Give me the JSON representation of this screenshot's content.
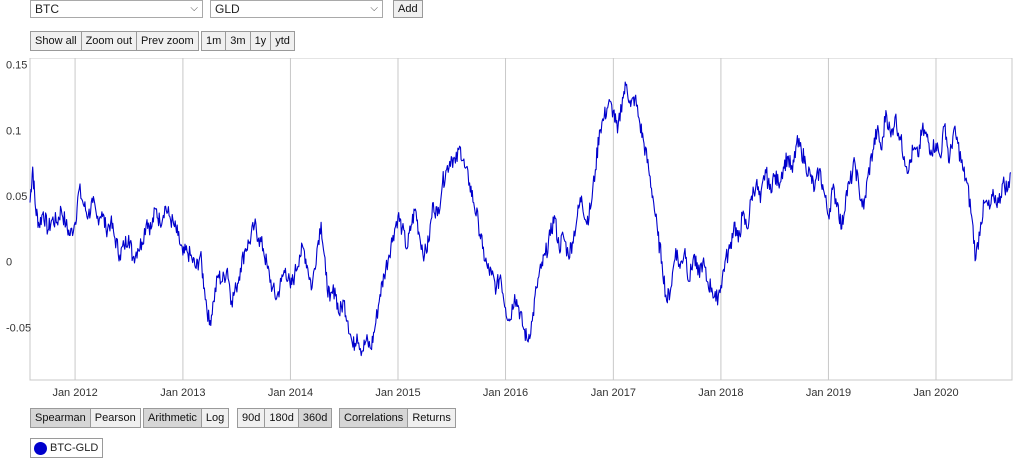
{
  "selectors": {
    "asset1": "BTC",
    "asset2": "GLD",
    "add_label": "Add"
  },
  "zoom_buttons": [
    "Show all",
    "Zoom out",
    "Prev zoom"
  ],
  "range_buttons": [
    "1m",
    "3m",
    "1y",
    "ytd"
  ],
  "method_buttons": [
    {
      "label": "Spearman",
      "active": true
    },
    {
      "label": "Pearson",
      "active": false
    }
  ],
  "scale_buttons": [
    {
      "label": "Arithmetic",
      "active": true
    },
    {
      "label": "Log",
      "active": false
    }
  ],
  "window_buttons": [
    {
      "label": "90d",
      "active": false
    },
    {
      "label": "180d",
      "active": false
    },
    {
      "label": "360d",
      "active": true
    }
  ],
  "mode_buttons": [
    {
      "label": "Correlations",
      "active": true
    },
    {
      "label": "Returns",
      "active": false
    }
  ],
  "legend": {
    "label": "BTC-GLD",
    "color": "#0000cc"
  },
  "chart_data": {
    "type": "line",
    "title": "",
    "xlabel": "",
    "ylabel": "",
    "ylim": [
      -0.09,
      0.155
    ],
    "xlim": [
      "2011-08-01",
      "2020-09-15"
    ],
    "y_ticks": [
      {
        "value": 0.15,
        "label": "0.15"
      },
      {
        "value": 0.1,
        "label": "0.1"
      },
      {
        "value": 0.05,
        "label": "0.05"
      },
      {
        "value": 0,
        "label": "0"
      },
      {
        "value": -0.05,
        "label": "-0.05"
      }
    ],
    "x_ticks": [
      {
        "date": "2012-01-01",
        "label": "Jan 2012"
      },
      {
        "date": "2013-01-01",
        "label": "Jan 2013"
      },
      {
        "date": "2014-01-01",
        "label": "Jan 2014"
      },
      {
        "date": "2015-01-01",
        "label": "Jan 2015"
      },
      {
        "date": "2016-01-01",
        "label": "Jan 2016"
      },
      {
        "date": "2017-01-01",
        "label": "Jan 2017"
      },
      {
        "date": "2018-01-01",
        "label": "Jan 2018"
      },
      {
        "date": "2019-01-01",
        "label": "Jan 2019"
      },
      {
        "date": "2020-01-01",
        "label": "Jan 2020"
      }
    ],
    "grid": {
      "vertical": true,
      "horizontal": false
    },
    "series": [
      {
        "color": "#0000cc",
        "points": [
          [
            "2011-08-01",
            0.045
          ],
          [
            "2011-08-10",
            0.072
          ],
          [
            "2011-08-20",
            0.04
          ],
          [
            "2011-09-01",
            0.028
          ],
          [
            "2011-09-15",
            0.038
          ],
          [
            "2011-10-01",
            0.024
          ],
          [
            "2011-10-15",
            0.032
          ],
          [
            "2011-11-01",
            0.03
          ],
          [
            "2011-11-15",
            0.04
          ],
          [
            "2011-12-01",
            0.028
          ],
          [
            "2011-12-15",
            0.02
          ],
          [
            "2012-01-01",
            0.03
          ],
          [
            "2012-01-15",
            0.055
          ],
          [
            "2012-02-01",
            0.042
          ],
          [
            "2012-02-15",
            0.035
          ],
          [
            "2012-03-01",
            0.045
          ],
          [
            "2012-03-15",
            0.033
          ],
          [
            "2012-04-01",
            0.038
          ],
          [
            "2012-04-15",
            0.025
          ],
          [
            "2012-05-01",
            0.03
          ],
          [
            "2012-05-15",
            0.018
          ],
          [
            "2012-06-01",
            0.005
          ],
          [
            "2012-06-15",
            0.012
          ],
          [
            "2012-07-01",
            0.02
          ],
          [
            "2012-07-15",
            0.003
          ],
          [
            "2012-08-01",
            0.01
          ],
          [
            "2012-08-15",
            0.015
          ],
          [
            "2012-09-01",
            0.032
          ],
          [
            "2012-09-15",
            0.025
          ],
          [
            "2012-10-01",
            0.04
          ],
          [
            "2012-10-15",
            0.03
          ],
          [
            "2012-11-01",
            0.042
          ],
          [
            "2012-11-15",
            0.035
          ],
          [
            "2012-12-01",
            0.028
          ],
          [
            "2012-12-15",
            0.02
          ],
          [
            "2013-01-01",
            0.005
          ],
          [
            "2013-01-15",
            0.008
          ],
          [
            "2013-02-01",
            0.002
          ],
          [
            "2013-02-15",
            -0.005
          ],
          [
            "2013-03-01",
            0.005
          ],
          [
            "2013-03-15",
            -0.02
          ],
          [
            "2013-04-01",
            -0.048
          ],
          [
            "2013-04-15",
            -0.03
          ],
          [
            "2013-05-01",
            -0.01
          ],
          [
            "2013-05-15",
            -0.015
          ],
          [
            "2013-06-01",
            -0.005
          ],
          [
            "2013-06-15",
            -0.03
          ],
          [
            "2013-07-01",
            -0.02
          ],
          [
            "2013-07-15",
            -0.005
          ],
          [
            "2013-08-01",
            0.01
          ],
          [
            "2013-08-15",
            0.015
          ],
          [
            "2013-09-01",
            0.028
          ],
          [
            "2013-09-15",
            0.018
          ],
          [
            "2013-10-01",
            0.01
          ],
          [
            "2013-10-15",
            -0.005
          ],
          [
            "2013-11-01",
            -0.02
          ],
          [
            "2013-11-15",
            -0.028
          ],
          [
            "2013-12-01",
            -0.015
          ],
          [
            "2013-12-15",
            -0.005
          ],
          [
            "2014-01-01",
            -0.02
          ],
          [
            "2014-01-15",
            -0.01
          ],
          [
            "2014-02-01",
            0.005
          ],
          [
            "2014-02-15",
            0.01
          ],
          [
            "2014-03-01",
            -0.005
          ],
          [
            "2014-03-15",
            -0.02
          ],
          [
            "2014-04-01",
            0.01
          ],
          [
            "2014-04-15",
            0.03
          ],
          [
            "2014-05-01",
            -0.01
          ],
          [
            "2014-05-15",
            -0.03
          ],
          [
            "2014-06-01",
            -0.02
          ],
          [
            "2014-06-15",
            -0.04
          ],
          [
            "2014-07-01",
            -0.03
          ],
          [
            "2014-07-15",
            -0.045
          ],
          [
            "2014-08-01",
            -0.065
          ],
          [
            "2014-08-15",
            -0.055
          ],
          [
            "2014-09-01",
            -0.068
          ],
          [
            "2014-09-15",
            -0.06
          ],
          [
            "2014-10-01",
            -0.066
          ],
          [
            "2014-10-15",
            -0.05
          ],
          [
            "2014-11-01",
            -0.025
          ],
          [
            "2014-11-15",
            -0.01
          ],
          [
            "2014-12-01",
            0.005
          ],
          [
            "2014-12-15",
            0.02
          ],
          [
            "2015-01-01",
            0.035
          ],
          [
            "2015-01-15",
            0.025
          ],
          [
            "2015-02-01",
            0.01
          ],
          [
            "2015-02-15",
            0.028
          ],
          [
            "2015-03-01",
            0.04
          ],
          [
            "2015-03-15",
            0.02
          ],
          [
            "2015-04-01",
            0.005
          ],
          [
            "2015-04-15",
            0.015
          ],
          [
            "2015-05-01",
            0.045
          ],
          [
            "2015-05-15",
            0.035
          ],
          [
            "2015-06-01",
            0.06
          ],
          [
            "2015-06-15",
            0.07
          ],
          [
            "2015-07-01",
            0.08
          ],
          [
            "2015-07-15",
            0.075
          ],
          [
            "2015-08-01",
            0.087
          ],
          [
            "2015-08-15",
            0.072
          ],
          [
            "2015-09-01",
            0.06
          ],
          [
            "2015-09-15",
            0.045
          ],
          [
            "2015-10-01",
            0.03
          ],
          [
            "2015-10-15",
            0.01
          ],
          [
            "2015-11-01",
            -0.005
          ],
          [
            "2015-11-15",
            -0.01
          ],
          [
            "2015-12-01",
            -0.02
          ],
          [
            "2015-12-15",
            -0.01
          ],
          [
            "2016-01-01",
            -0.035
          ],
          [
            "2016-01-15",
            -0.045
          ],
          [
            "2016-02-01",
            -0.025
          ],
          [
            "2016-02-15",
            -0.035
          ],
          [
            "2016-03-01",
            -0.05
          ],
          [
            "2016-03-15",
            -0.06
          ],
          [
            "2016-04-01",
            -0.045
          ],
          [
            "2016-04-15",
            -0.02
          ],
          [
            "2016-05-01",
            -0.005
          ],
          [
            "2016-05-15",
            0.005
          ],
          [
            "2016-06-01",
            0.02
          ],
          [
            "2016-06-15",
            0.035
          ],
          [
            "2016-07-01",
            0.01
          ],
          [
            "2016-07-15",
            0.02
          ],
          [
            "2016-08-01",
            0.005
          ],
          [
            "2016-08-15",
            0.015
          ],
          [
            "2016-09-01",
            0.035
          ],
          [
            "2016-09-15",
            0.05
          ],
          [
            "2016-10-01",
            0.03
          ],
          [
            "2016-10-15",
            0.04
          ],
          [
            "2016-11-01",
            0.07
          ],
          [
            "2016-11-15",
            0.1
          ],
          [
            "2016-12-01",
            0.11
          ],
          [
            "2016-12-15",
            0.12
          ],
          [
            "2017-01-01",
            0.115
          ],
          [
            "2017-01-15",
            0.098
          ],
          [
            "2017-02-01",
            0.125
          ],
          [
            "2017-02-15",
            0.135
          ],
          [
            "2017-03-01",
            0.118
          ],
          [
            "2017-03-15",
            0.125
          ],
          [
            "2017-04-01",
            0.105
          ],
          [
            "2017-04-15",
            0.09
          ],
          [
            "2017-05-01",
            0.07
          ],
          [
            "2017-05-15",
            0.05
          ],
          [
            "2017-06-01",
            0.02
          ],
          [
            "2017-06-15",
            0.0
          ],
          [
            "2017-07-01",
            -0.03
          ],
          [
            "2017-07-15",
            -0.02
          ],
          [
            "2017-08-01",
            0.01
          ],
          [
            "2017-08-15",
            -0.005
          ],
          [
            "2017-09-01",
            0.01
          ],
          [
            "2017-09-15",
            -0.015
          ],
          [
            "2017-10-01",
            0.005
          ],
          [
            "2017-10-15",
            -0.01
          ],
          [
            "2017-11-01",
            0.0
          ],
          [
            "2017-11-15",
            -0.015
          ],
          [
            "2017-12-01",
            -0.02
          ],
          [
            "2017-12-15",
            -0.03
          ],
          [
            "2018-01-01",
            -0.018
          ],
          [
            "2018-01-15",
            0.0
          ],
          [
            "2018-02-01",
            0.01
          ],
          [
            "2018-02-15",
            0.03
          ],
          [
            "2018-03-01",
            0.015
          ],
          [
            "2018-03-15",
            0.035
          ],
          [
            "2018-04-01",
            0.025
          ],
          [
            "2018-04-15",
            0.05
          ],
          [
            "2018-05-01",
            0.06
          ],
          [
            "2018-05-15",
            0.045
          ],
          [
            "2018-06-01",
            0.07
          ],
          [
            "2018-06-15",
            0.055
          ],
          [
            "2018-07-01",
            0.065
          ],
          [
            "2018-07-15",
            0.06
          ],
          [
            "2018-08-01",
            0.072
          ],
          [
            "2018-08-15",
            0.08
          ],
          [
            "2018-09-01",
            0.068
          ],
          [
            "2018-09-15",
            0.09
          ],
          [
            "2018-10-01",
            0.085
          ],
          [
            "2018-10-15",
            0.075
          ],
          [
            "2018-11-01",
            0.065
          ],
          [
            "2018-11-15",
            0.055
          ],
          [
            "2018-12-01",
            0.07
          ],
          [
            "2018-12-15",
            0.055
          ],
          [
            "2019-01-01",
            0.035
          ],
          [
            "2019-01-15",
            0.055
          ],
          [
            "2019-02-01",
            0.045
          ],
          [
            "2019-02-15",
            0.025
          ],
          [
            "2019-03-01",
            0.05
          ],
          [
            "2019-03-15",
            0.06
          ],
          [
            "2019-04-01",
            0.075
          ],
          [
            "2019-04-15",
            0.055
          ],
          [
            "2019-05-01",
            0.04
          ],
          [
            "2019-05-15",
            0.065
          ],
          [
            "2019-06-01",
            0.085
          ],
          [
            "2019-06-15",
            0.1
          ],
          [
            "2019-07-01",
            0.085
          ],
          [
            "2019-07-15",
            0.115
          ],
          [
            "2019-08-01",
            0.095
          ],
          [
            "2019-08-15",
            0.11
          ],
          [
            "2019-09-01",
            0.095
          ],
          [
            "2019-09-15",
            0.08
          ],
          [
            "2019-10-01",
            0.07
          ],
          [
            "2019-10-15",
            0.085
          ],
          [
            "2019-11-01",
            0.08
          ],
          [
            "2019-11-15",
            0.1
          ],
          [
            "2019-12-01",
            0.095
          ],
          [
            "2019-12-15",
            0.085
          ],
          [
            "2020-01-01",
            0.09
          ],
          [
            "2020-01-15",
            0.08
          ],
          [
            "2020-02-01",
            0.105
          ],
          [
            "2020-02-15",
            0.075
          ],
          [
            "2020-03-01",
            0.1
          ],
          [
            "2020-03-15",
            0.09
          ],
          [
            "2020-04-01",
            0.07
          ],
          [
            "2020-04-15",
            0.06
          ],
          [
            "2020-05-01",
            0.035
          ],
          [
            "2020-05-15",
            0.002
          ],
          [
            "2020-06-01",
            0.03
          ],
          [
            "2020-06-15",
            0.045
          ],
          [
            "2020-07-01",
            0.04
          ],
          [
            "2020-07-15",
            0.05
          ],
          [
            "2020-08-01",
            0.045
          ],
          [
            "2020-08-15",
            0.06
          ],
          [
            "2020-09-01",
            0.055
          ],
          [
            "2020-09-10",
            0.068
          ]
        ]
      }
    ]
  }
}
